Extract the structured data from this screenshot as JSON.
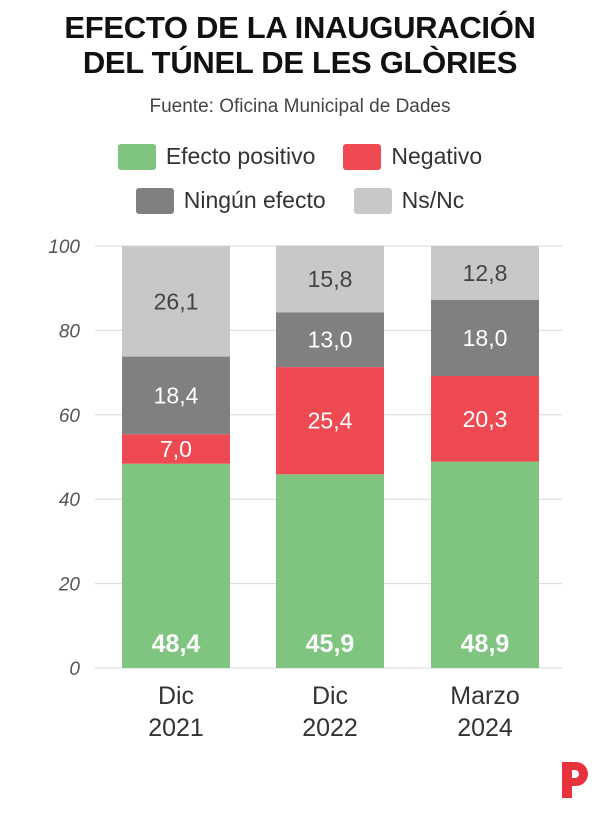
{
  "title_lines": [
    "EFECTO DE LA INAUGURACIÓN",
    "DEL TÚNEL DE LES GLÒRIES"
  ],
  "source": "Fuente: Oficina Municipal de Dades",
  "brand_color": "#e8333c",
  "chart_data": {
    "type": "bar",
    "stacked": true,
    "categories": [
      [
        "Dic",
        "2021"
      ],
      [
        "Dic",
        "2022"
      ],
      [
        "Marzo",
        "2024"
      ]
    ],
    "series": [
      {
        "name": "Efecto positivo",
        "color": "#7fc47f",
        "values": [
          48.4,
          45.9,
          48.9
        ],
        "labels": [
          "48,4",
          "45,9",
          "48,9"
        ],
        "label_color": "#ffffff",
        "bold": true
      },
      {
        "name": "Negativo",
        "color": "#ef4a52",
        "values": [
          7.0,
          25.4,
          20.3
        ],
        "labels": [
          "7,0",
          "25,4",
          "20,3"
        ],
        "label_color": "#ffffff",
        "bold": false
      },
      {
        "name": "Ningún efecto",
        "color": "#808080",
        "values": [
          18.4,
          13.0,
          18.0
        ],
        "labels": [
          "18,4",
          "13,0",
          "18,0"
        ],
        "label_color": "#ffffff",
        "bold": false
      },
      {
        "name": "Ns/Nc",
        "color": "#c8c8c8",
        "values": [
          26.1,
          15.8,
          12.8
        ],
        "labels": [
          "26,1",
          "15,8",
          "12,8"
        ],
        "label_color": "#444444",
        "bold": false
      }
    ],
    "ylim": [
      0,
      100
    ],
    "yticks": [
      "0",
      "20",
      "40",
      "60",
      "80",
      "100"
    ],
    "grid": true,
    "legend_position": "top"
  }
}
